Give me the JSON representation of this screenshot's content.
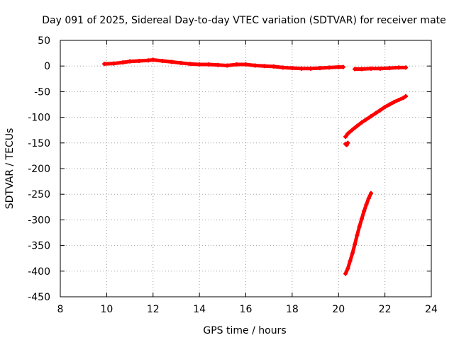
{
  "chart_data": {
    "type": "scatter",
    "title": "Day 091 of 2025, Sidereal Day-to-day VTEC variation (SDTVAR) for receiver mate",
    "xlabel": "GPS time / hours",
    "ylabel": "SDTVAR / TECUs",
    "xlim": [
      8,
      24
    ],
    "ylim": [
      -450,
      50
    ],
    "x_ticks": [
      8,
      10,
      12,
      14,
      16,
      18,
      20,
      22,
      24
    ],
    "y_ticks": [
      50,
      0,
      -50,
      -100,
      -150,
      -200,
      -250,
      -300,
      -350,
      -400,
      -450
    ],
    "grid": true,
    "legend": "none",
    "marker_color": "#ff0000",
    "series": [
      {
        "x": [
          9.9,
          10.3,
          10.7,
          11.0,
          11.4,
          11.8,
          12.0,
          12.4,
          12.8,
          13.2,
          13.6,
          14.0,
          14.4,
          14.8,
          15.2,
          15.6,
          16.0,
          16.4,
          16.8,
          17.2,
          17.6,
          18.0,
          18.4,
          18.8,
          19.2,
          19.6,
          20.0,
          20.2
        ],
        "y": [
          4,
          5,
          7,
          9,
          10,
          11,
          12,
          10,
          8,
          6,
          4,
          3,
          3,
          2,
          1,
          3,
          3,
          1,
          0,
          -1,
          -3,
          -4,
          -5,
          -5,
          -4,
          -3,
          -2,
          -2
        ]
      },
      {
        "x": [
          20.7,
          21.0,
          21.4,
          21.8,
          22.2,
          22.6,
          22.9
        ],
        "y": [
          -6,
          -6,
          -5,
          -5,
          -4,
          -3,
          -3
        ]
      },
      {
        "x": [
          20.3,
          20.4,
          20.6,
          20.8,
          21.0,
          21.2,
          21.4,
          21.6,
          21.8,
          22.0,
          22.2,
          22.4,
          22.6,
          22.8,
          22.9
        ],
        "y": [
          -138,
          -132,
          -124,
          -117,
          -110,
          -104,
          -98,
          -92,
          -86,
          -80,
          -75,
          -70,
          -66,
          -62,
          -59
        ]
      },
      {
        "x": [
          20.3,
          20.35,
          20.4
        ],
        "y": [
          -152,
          -154,
          -150
        ]
      },
      {
        "x": [
          20.3,
          20.4,
          20.5,
          20.6,
          20.7,
          20.8,
          20.9,
          21.0,
          21.1,
          21.2,
          21.3,
          21.4
        ],
        "y": [
          -405,
          -395,
          -380,
          -365,
          -348,
          -330,
          -313,
          -298,
          -283,
          -270,
          -258,
          -248
        ]
      }
    ]
  }
}
